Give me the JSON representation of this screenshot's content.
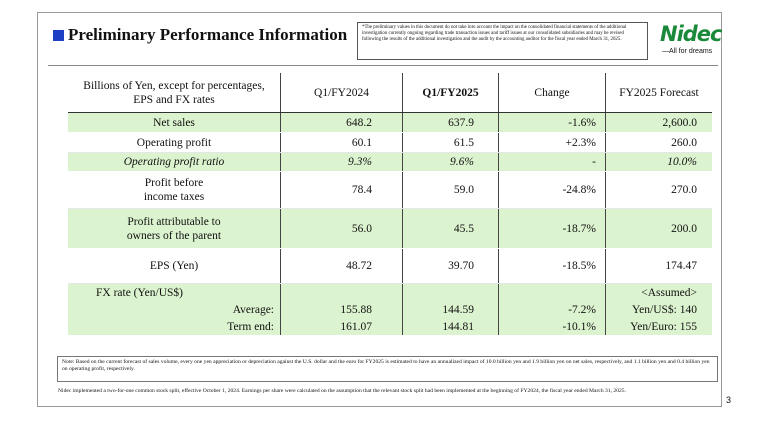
{
  "header": {
    "title": "Preliminary Performance Information",
    "disclaimer": "*The preliminary values in this document do not take into account the impact on the consolidated financial statements of the additional investigation currently ongoing regarding trade transaction issues and tariff issues at our consolidated subsidiaries and may be revised following the results of the additional investigation and the audit by the accounting auditor for the fiscal year ended March 31, 2025.",
    "logo": "Nidec",
    "tagline": "—All for dreams"
  },
  "table": {
    "columns": [
      "Billions of Yen, except for percentages,\nEPS and FX rates",
      "Q1/FY2024",
      "Q1/FY2025",
      "Change",
      "FY2025 Forecast"
    ],
    "rows": [
      [
        "Net sales",
        "648.2",
        "637.9",
        "-1.6%",
        "2,600.0"
      ],
      [
        "Operating profit",
        "60.1",
        "61.5",
        "+2.3%",
        "260.0"
      ],
      [
        "Operating profit ratio",
        "9.3%",
        "9.6%",
        "-",
        "10.0%"
      ],
      [
        "Profit before\nincome taxes",
        "78.4",
        "59.0",
        "-24.8%",
        "270.0"
      ],
      [
        "Profit attributable to\nowners of the parent",
        "56.0",
        "45.5",
        "-18.7%",
        "200.0"
      ],
      [
        "EPS (Yen)",
        "48.72",
        "39.70",
        "-18.5%",
        "174.47"
      ]
    ],
    "fx": {
      "label": "FX rate (Yen/US$)",
      "forecast_note": "<Assumed>",
      "rows": [
        [
          "Average:",
          "155.88",
          "144.59",
          "-7.2%",
          "Yen/US$: 140"
        ],
        [
          "Term end:",
          "161.07",
          "144.81",
          "-10.1%",
          "Yen/Euro: 155"
        ]
      ]
    }
  },
  "notes": [
    "Note: Based on the current forecast of sales volume, every one yen appreciation or depreciation against the U.S. dollar and the euro for FY2025 is estimated to have an annualized impact of 10.0 billion yen and 1.9 billion yen on net sales, respectively, and 1.1 billion yen and 0.4 billion yen on operating profit, respectively.",
    "Nidec implemented a two-for-one common stock split, effective October 1, 2024. Earnings per share were calculated on the assumption that the relevant stock split had been implemented at the beginning of FY2024, the fiscal year ended March 31, 2025."
  ],
  "page_number": "3"
}
